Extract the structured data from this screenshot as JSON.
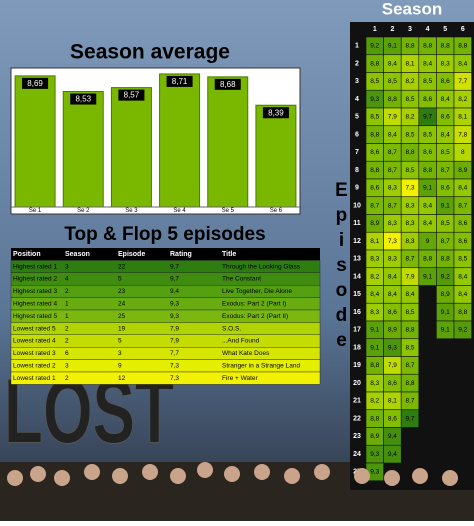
{
  "chart_data": [
    {
      "type": "bar",
      "title": "Season average",
      "categories": [
        "Se 1",
        "Se 2",
        "Se 3",
        "Se 4",
        "Se 5",
        "Se 6"
      ],
      "values": [
        8.69,
        8.53,
        8.57,
        8.71,
        8.68,
        8.39
      ],
      "value_labels": [
        "8,69",
        "8,53",
        "8,57",
        "8,71",
        "8,68",
        "8,39"
      ],
      "color": "#7ab800",
      "ylim": [
        7.35,
        8.75
      ]
    },
    {
      "type": "heatmap",
      "title": "Season",
      "y_label": "Episode",
      "columns": [
        1,
        2,
        3,
        4,
        5,
        6
      ],
      "rows": [
        1,
        2,
        3,
        4,
        5,
        6,
        7,
        8,
        9,
        10,
        11,
        12,
        13,
        14,
        15,
        16,
        17,
        18,
        19,
        20,
        21,
        22,
        23,
        24,
        25
      ],
      "colors": [
        "#f2f200",
        "#8cc400",
        "#2e7d10"
      ],
      "values": [
        [
          9.2,
          9.1,
          8.8,
          8.8,
          8.8,
          8.8
        ],
        [
          8.8,
          8.4,
          8.1,
          8.4,
          8.3,
          8.4
        ],
        [
          8.5,
          8.5,
          8.2,
          8.5,
          8.6,
          7.7
        ],
        [
          9.3,
          8.8,
          8.5,
          8.6,
          8.4,
          8.2
        ],
        [
          8.5,
          7.9,
          8.2,
          9.7,
          8.6,
          8.1
        ],
        [
          8.8,
          8.4,
          8.5,
          8.5,
          8.4,
          7.8
        ],
        [
          8.6,
          8.7,
          8.8,
          8.6,
          8.5,
          8.0
        ],
        [
          8.8,
          8.7,
          8.5,
          8.8,
          8.7,
          8.9
        ],
        [
          8.6,
          8.3,
          7.3,
          9.1,
          8.6,
          8.4
        ],
        [
          8.7,
          8.7,
          8.3,
          8.4,
          9.1,
          8.7
        ],
        [
          8.9,
          8.3,
          8.3,
          8.4,
          8.5,
          8.6
        ],
        [
          8.1,
          7.3,
          8.3,
          9.0,
          8.7,
          8.6
        ],
        [
          8.3,
          8.3,
          8.7,
          8.8,
          8.8,
          8.5
        ],
        [
          8.2,
          8.4,
          7.9,
          9.1,
          9.2,
          8.4
        ],
        [
          8.4,
          8.4,
          8.4,
          null,
          8.9,
          8.4
        ],
        [
          8.3,
          8.6,
          8.5,
          null,
          9.1,
          8.8
        ],
        [
          9.1,
          8.9,
          8.8,
          null,
          9.1,
          9.2
        ],
        [
          9.1,
          9.3,
          8.5,
          null,
          null,
          null
        ],
        [
          8.8,
          7.9,
          8.7,
          null,
          null,
          null
        ],
        [
          8.3,
          8.6,
          8.8,
          null,
          null,
          null
        ],
        [
          8.2,
          8.1,
          8.7,
          null,
          null,
          null
        ],
        [
          8.8,
          8.6,
          9.7,
          null,
          null,
          null
        ],
        [
          8.9,
          9.4,
          null,
          null,
          null,
          null
        ],
        [
          9.3,
          9.4,
          null,
          null,
          null,
          null
        ],
        [
          9.3,
          null,
          null,
          null,
          null,
          null
        ]
      ],
      "value_labels": [
        [
          "9,2",
          "9,1",
          "8,8",
          "8,8",
          "8,8",
          "8,8"
        ],
        [
          "8,8",
          "8,4",
          "8,1",
          "8,4",
          "8,3",
          "8,4"
        ],
        [
          "8,5",
          "8,5",
          "8,2",
          "8,5",
          "8,6",
          "7,7"
        ],
        [
          "9,3",
          "8,8",
          "8,5",
          "8,6",
          "8,4",
          "8,2"
        ],
        [
          "8,5",
          "7,9",
          "8,2",
          "9,7",
          "8,6",
          "8,1"
        ],
        [
          "8,8",
          "8,4",
          "8,5",
          "8,5",
          "8,4",
          "7,8"
        ],
        [
          "8,6",
          "8,7",
          "8,8",
          "8,6",
          "8,5",
          "8"
        ],
        [
          "8,8",
          "8,7",
          "8,5",
          "8,8",
          "8,7",
          "8,9"
        ],
        [
          "8,6",
          "8,3",
          "7,3",
          "9,1",
          "8,6",
          "8,4"
        ],
        [
          "8,7",
          "8,7",
          "8,3",
          "8,4",
          "9,1",
          "8,7"
        ],
        [
          "8,9",
          "8,3",
          "8,3",
          "8,4",
          "8,5",
          "8,6"
        ],
        [
          "8,1",
          "7,3",
          "8,3",
          "9",
          "8,7",
          "8,6"
        ],
        [
          "8,3",
          "8,3",
          "8,7",
          "8,8",
          "8,8",
          "8,5"
        ],
        [
          "8,2",
          "8,4",
          "7,9",
          "9,1",
          "9,2",
          "8,4"
        ],
        [
          "8,4",
          "8,4",
          "8,4",
          null,
          "8,9",
          "8,4"
        ],
        [
          "8,3",
          "8,6",
          "8,5",
          null,
          "9,1",
          "8,8"
        ],
        [
          "9,1",
          "8,9",
          "8,8",
          null,
          "9,1",
          "9,2"
        ],
        [
          "9,1",
          "9,3",
          "8,5",
          null,
          null,
          null
        ],
        [
          "8,8",
          "7,9",
          "8,7",
          null,
          null,
          null
        ],
        [
          "8,3",
          "8,6",
          "8,8",
          null,
          null,
          null
        ],
        [
          "8,2",
          "8,1",
          "8,7",
          null,
          null,
          null
        ],
        [
          "8,8",
          "8,6",
          "9,7",
          null,
          null,
          null
        ],
        [
          "8,9",
          "9,4",
          null,
          null,
          null,
          null
        ],
        [
          "9,3",
          "9,4",
          null,
          null,
          null,
          null
        ],
        [
          "9,3",
          null,
          null,
          null,
          null,
          null
        ]
      ]
    }
  ],
  "table": {
    "title": "Top & Flop 5 episodes",
    "columns": [
      "Position",
      "Season",
      "Episode",
      "Rating",
      "Title"
    ],
    "rows": [
      [
        "Highest rated 1",
        "3",
        "22",
        "9,7",
        "Through the Looking Glass"
      ],
      [
        "Highest rated 2",
        "4",
        "5",
        "9,7",
        "The Constant"
      ],
      [
        "Highest rated 3",
        "2",
        "23",
        "9,4",
        "Live Together, Die Alone"
      ],
      [
        "Highest rated 4",
        "1",
        "24",
        "9,3",
        "Exodus: Part 2 (Part I)"
      ],
      [
        "Highest rated 5",
        "1",
        "25",
        "9,3",
        "Exodus: Part 2 (Part II)"
      ],
      [
        "Lowest rated 5",
        "2",
        "19",
        "7,9",
        "S.O.S."
      ],
      [
        "Lowest rated 4",
        "2",
        "5",
        "7,9",
        "...And Found"
      ],
      [
        "Lowest rated 3",
        "6",
        "3",
        "7,7",
        "What Kate Does"
      ],
      [
        "Lowest rated 2",
        "3",
        "9",
        "7,3",
        "Stranger in a Strange Land"
      ],
      [
        "Lowest rated 1",
        "2",
        "12",
        "7,3",
        "Fire + Water"
      ]
    ],
    "row_colors": [
      "#2e7d10",
      "#3f8c10",
      "#55a010",
      "#68ac10",
      "#7ab810",
      "#b0d400",
      "#c4dc00",
      "#d6e600",
      "#e6ee00",
      "#f2f200"
    ]
  },
  "logo": "LOST"
}
